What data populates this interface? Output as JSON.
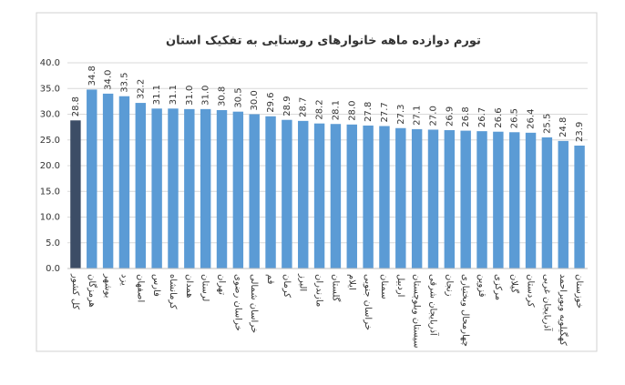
{
  "chart_data": {
    "type": "bar",
    "title": "تورم دوازده ماهه خانوارهای روستایی به تفکیک استان",
    "categories": [
      "کل کشور",
      "هرمزگان",
      "بوشهر",
      "یزد",
      "اصفهان",
      "فارس",
      "کرمانشاه",
      "همدان",
      "لرستان",
      "تهران",
      "خراسان رضوی",
      "خراسان شمالی",
      "قم",
      "کرمان",
      "البرز",
      "مازندران",
      "گلستان",
      "ایلام",
      "خراسان جنوبی",
      "سمنان",
      "اردبیل",
      "سیستان وبلوچستان",
      "آذربایجان شرقی",
      "زنجان",
      "چهارمحال وبختیاری",
      "قزوین",
      "مرکزی",
      "گیلان",
      "کردستان",
      "آذربایجان غربی",
      "کهگیلویه وبویراحمد",
      "خوزستان"
    ],
    "values": [
      28.8,
      34.8,
      34.0,
      33.5,
      32.2,
      31.1,
      31.1,
      31.0,
      31.0,
      30.8,
      30.5,
      30.0,
      29.6,
      28.9,
      28.7,
      28.2,
      28.1,
      28.0,
      27.8,
      27.7,
      27.3,
      27.1,
      27.0,
      26.9,
      26.8,
      26.7,
      26.6,
      26.5,
      26.4,
      25.5,
      24.8,
      23.9
    ],
    "value_labels": [
      "28.8",
      "34.8",
      "34.0",
      "33.5",
      "32.2",
      "31.1",
      "31.1",
      "31.0",
      "31.0",
      "30.8",
      "30.5",
      "30.0",
      "29.6",
      "28.9",
      "28.7",
      "28.2",
      "28.1",
      "28.0",
      "27.8",
      "27.7",
      "27.3",
      "27.1",
      "27.0",
      "26.9",
      "26.8",
      "26.7",
      "26.6",
      "26.5",
      "26.4",
      "25.5",
      "24.8",
      "23.9"
    ],
    "colors": [
      "#3c4d66",
      "#5b9bd5",
      "#5b9bd5",
      "#5b9bd5",
      "#5b9bd5",
      "#5b9bd5",
      "#5b9bd5",
      "#5b9bd5",
      "#5b9bd5",
      "#5b9bd5",
      "#5b9bd5",
      "#5b9bd5",
      "#5b9bd5",
      "#5b9bd5",
      "#5b9bd5",
      "#5b9bd5",
      "#5b9bd5",
      "#5b9bd5",
      "#5b9bd5",
      "#5b9bd5",
      "#5b9bd5",
      "#5b9bd5",
      "#5b9bd5",
      "#5b9bd5",
      "#5b9bd5",
      "#5b9bd5",
      "#5b9bd5",
      "#5b9bd5",
      "#5b9bd5",
      "#5b9bd5",
      "#5b9bd5",
      "#5b9bd5"
    ],
    "ylim": [
      0,
      40
    ],
    "yticks": [
      {
        "value": 0,
        "label": "0.0"
      },
      {
        "value": 5,
        "label": "5.0"
      },
      {
        "value": 10,
        "label": "10.0"
      },
      {
        "value": 15,
        "label": "15.0"
      },
      {
        "value": 20,
        "label": "20.0"
      },
      {
        "value": 25,
        "label": "25.0"
      },
      {
        "value": 30,
        "label": "30.0"
      },
      {
        "value": 35,
        "label": "35.0"
      },
      {
        "value": 40,
        "label": "40.0"
      }
    ],
    "grid": true
  }
}
